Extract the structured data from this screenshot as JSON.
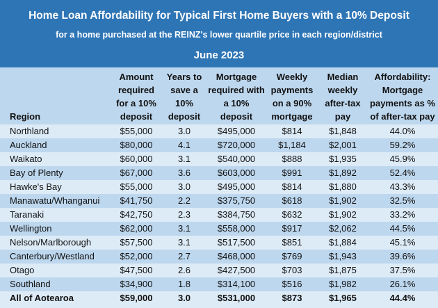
{
  "header": {
    "title": "Home Loan Affordability for Typical First Home Buyers with a 10% Deposit",
    "subtitle": "for a home purchased at the REINZ's lower quartile price in each region/district",
    "date": "June 2023"
  },
  "colors": {
    "banner": "#2E75B6",
    "row_light": "#DDEBF7",
    "row_dark": "#BDD7EE"
  },
  "table": {
    "columns": [
      "Region",
      "Amount required for a 10% deposit",
      "Years to save a 10% deposit",
      "Mortgage required with a 10% deposit",
      "Weekly payments on a 90% mortgage",
      "Median weekly after-tax pay",
      "Affordability: Mortgage payments as % of after-tax pay"
    ],
    "rows": [
      [
        "Northland",
        "$55,000",
        "3.0",
        "$495,000",
        "$814",
        "$1,848",
        "44.0%"
      ],
      [
        "Auckland",
        "$80,000",
        "4.1",
        "$720,000",
        "$1,184",
        "$2,001",
        "59.2%"
      ],
      [
        "Waikato",
        "$60,000",
        "3.1",
        "$540,000",
        "$888",
        "$1,935",
        "45.9%"
      ],
      [
        "Bay of Plenty",
        "$67,000",
        "3.6",
        "$603,000",
        "$991",
        "$1,892",
        "52.4%"
      ],
      [
        "Hawke's Bay",
        "$55,000",
        "3.0",
        "$495,000",
        "$814",
        "$1,880",
        "43.3%"
      ],
      [
        "Manawatu/Whanganui",
        "$41,750",
        "2.2",
        "$375,750",
        "$618",
        "$1,902",
        "32.5%"
      ],
      [
        "Taranaki",
        "$42,750",
        "2.3",
        "$384,750",
        "$632",
        "$1,902",
        "33.2%"
      ],
      [
        "Wellington",
        "$62,000",
        "3.1",
        "$558,000",
        "$917",
        "$2,062",
        "44.5%"
      ],
      [
        "Nelson/Marlborough",
        "$57,500",
        "3.1",
        "$517,500",
        "$851",
        "$1,884",
        "45.1%"
      ],
      [
        "Canterbury/Westland",
        "$52,000",
        "2.7",
        "$468,000",
        "$769",
        "$1,943",
        "39.6%"
      ],
      [
        "Otago",
        "$47,500",
        "2.6",
        "$427,500",
        "$703",
        "$1,875",
        "37.5%"
      ],
      [
        "Southland",
        "$34,900",
        "1.8",
        "$314,100",
        "$516",
        "$1,982",
        "26.1%"
      ]
    ],
    "total": [
      "All of Aotearoa",
      "$59,000",
      "3.0",
      "$531,000",
      "$873",
      "$1,965",
      "44.4%"
    ]
  }
}
